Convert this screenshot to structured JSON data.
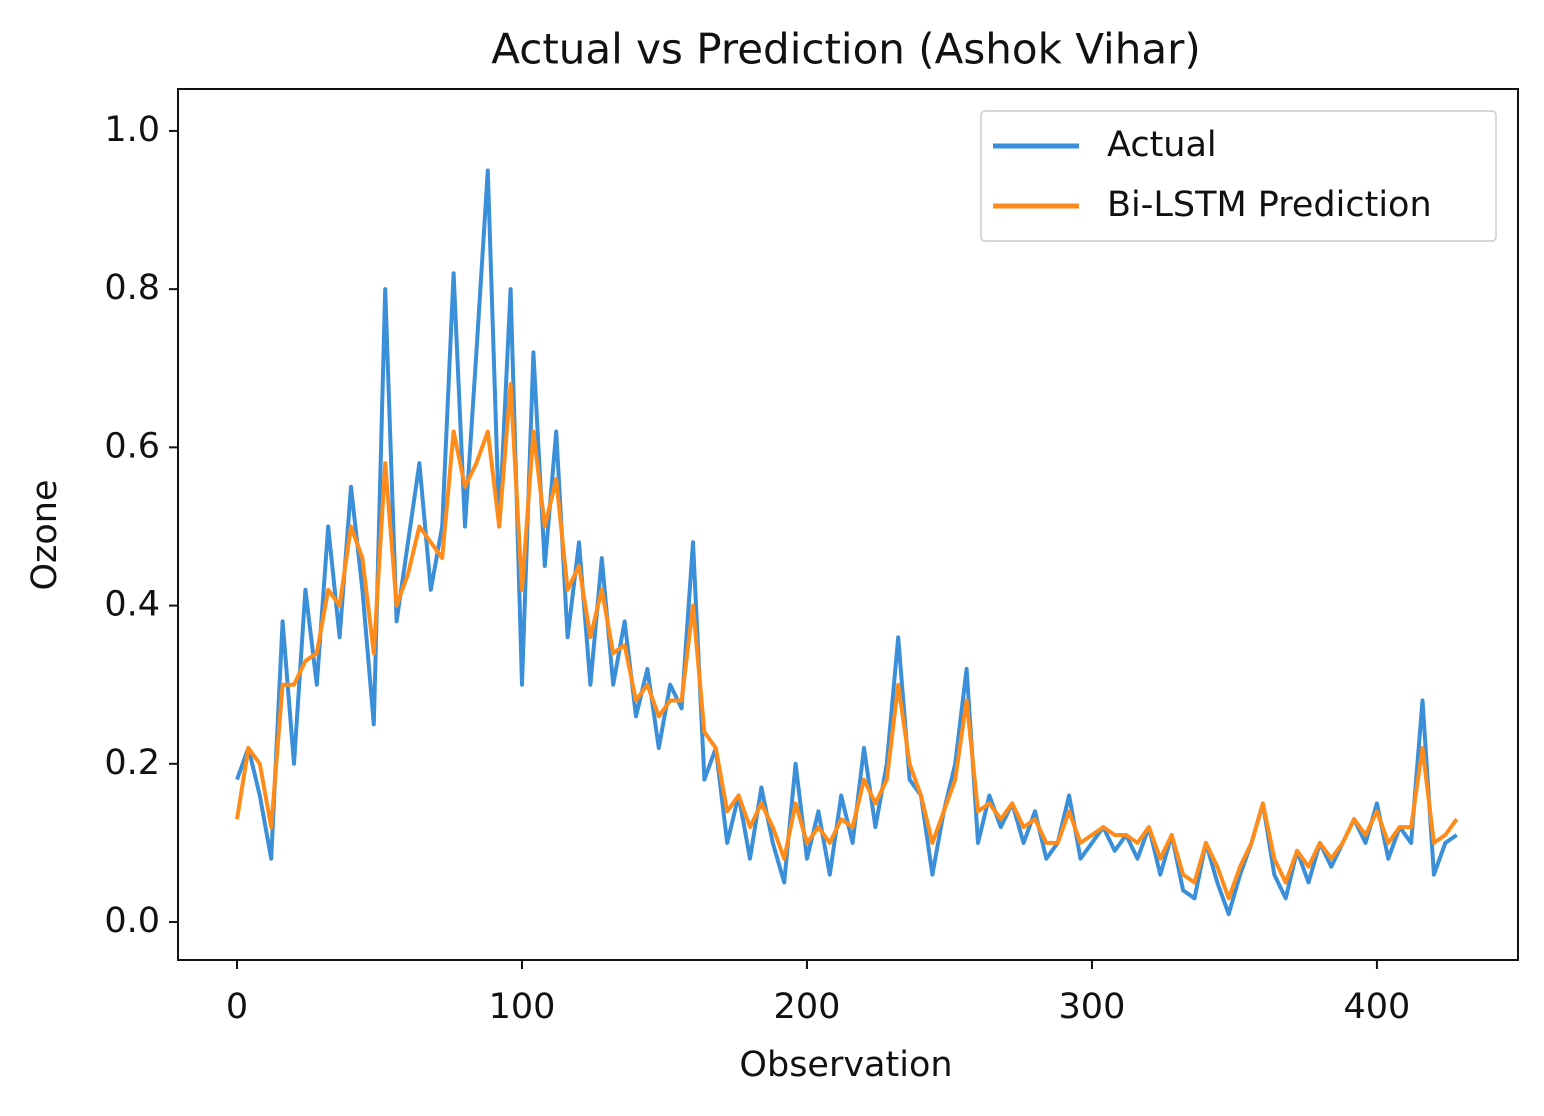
{
  "chart_data": {
    "type": "line",
    "title": "Actual vs Prediction (Ashok Vihar)",
    "x_label": "Observation",
    "y_label": "Ozone",
    "x": [
      0,
      4,
      8,
      12,
      16,
      20,
      24,
      28,
      32,
      36,
      40,
      44,
      48,
      52,
      56,
      60,
      64,
      68,
      72,
      76,
      80,
      84,
      88,
      92,
      96,
      100,
      104,
      108,
      112,
      116,
      120,
      124,
      128,
      132,
      136,
      140,
      144,
      148,
      152,
      156,
      160,
      164,
      168,
      172,
      176,
      180,
      184,
      188,
      192,
      196,
      200,
      204,
      208,
      212,
      216,
      220,
      224,
      228,
      232,
      236,
      240,
      244,
      248,
      252,
      256,
      260,
      264,
      268,
      272,
      276,
      280,
      284,
      288,
      292,
      296,
      300,
      304,
      308,
      312,
      316,
      320,
      324,
      328,
      332,
      336,
      340,
      344,
      348,
      352,
      356,
      360,
      364,
      368,
      372,
      376,
      380,
      384,
      388,
      392,
      396,
      400,
      404,
      408,
      412,
      416,
      420,
      424,
      428
    ],
    "series": [
      {
        "name": "Actual",
        "color": "#3a8fd8",
        "values": [
          0.18,
          0.22,
          0.16,
          0.08,
          0.38,
          0.2,
          0.42,
          0.3,
          0.5,
          0.36,
          0.55,
          0.42,
          0.25,
          0.8,
          0.38,
          0.48,
          0.58,
          0.42,
          0.5,
          0.82,
          0.5,
          0.72,
          0.95,
          0.5,
          0.8,
          0.3,
          0.72,
          0.45,
          0.62,
          0.36,
          0.48,
          0.3,
          0.46,
          0.3,
          0.38,
          0.26,
          0.32,
          0.22,
          0.3,
          0.27,
          0.48,
          0.18,
          0.22,
          0.1,
          0.16,
          0.08,
          0.17,
          0.1,
          0.05,
          0.2,
          0.08,
          0.14,
          0.06,
          0.16,
          0.1,
          0.22,
          0.12,
          0.2,
          0.36,
          0.18,
          0.16,
          0.06,
          0.14,
          0.2,
          0.32,
          0.1,
          0.16,
          0.12,
          0.15,
          0.1,
          0.14,
          0.08,
          0.1,
          0.16,
          0.08,
          0.1,
          0.12,
          0.09,
          0.11,
          0.08,
          0.12,
          0.06,
          0.11,
          0.04,
          0.03,
          0.1,
          0.05,
          0.01,
          0.06,
          0.1,
          0.15,
          0.06,
          0.03,
          0.09,
          0.05,
          0.1,
          0.07,
          0.1,
          0.13,
          0.1,
          0.15,
          0.08,
          0.12,
          0.1,
          0.28,
          0.06,
          0.1,
          0.11
        ]
      },
      {
        "name": "Bi-LSTM Prediction",
        "color": "#ff8c1a",
        "values": [
          0.13,
          0.22,
          0.2,
          0.12,
          0.3,
          0.3,
          0.33,
          0.34,
          0.42,
          0.4,
          0.5,
          0.46,
          0.34,
          0.58,
          0.4,
          0.44,
          0.5,
          0.48,
          0.46,
          0.62,
          0.55,
          0.58,
          0.62,
          0.5,
          0.68,
          0.42,
          0.62,
          0.5,
          0.56,
          0.42,
          0.45,
          0.36,
          0.42,
          0.34,
          0.35,
          0.28,
          0.3,
          0.26,
          0.28,
          0.28,
          0.4,
          0.24,
          0.22,
          0.14,
          0.16,
          0.12,
          0.15,
          0.12,
          0.08,
          0.15,
          0.1,
          0.12,
          0.1,
          0.13,
          0.12,
          0.18,
          0.15,
          0.18,
          0.3,
          0.2,
          0.16,
          0.1,
          0.14,
          0.18,
          0.28,
          0.14,
          0.15,
          0.13,
          0.15,
          0.12,
          0.13,
          0.1,
          0.1,
          0.14,
          0.1,
          0.11,
          0.12,
          0.11,
          0.11,
          0.1,
          0.12,
          0.08,
          0.11,
          0.06,
          0.05,
          0.1,
          0.07,
          0.03,
          0.07,
          0.1,
          0.15,
          0.08,
          0.05,
          0.09,
          0.07,
          0.1,
          0.08,
          0.1,
          0.13,
          0.11,
          0.14,
          0.1,
          0.12,
          0.12,
          0.22,
          0.1,
          0.11,
          0.13
        ]
      }
    ],
    "xlim": [
      -20.7,
      449.5
    ],
    "ylim": [
      -0.048,
      1.053
    ],
    "xticks": [
      0,
      100,
      200,
      300,
      400
    ],
    "yticks": [
      {
        "value": 0,
        "label": "0.0"
      },
      0.2,
      0.4,
      0.6,
      0.8,
      {
        "value": 1,
        "label": "1.0"
      }
    ],
    "legend": "upper right"
  }
}
